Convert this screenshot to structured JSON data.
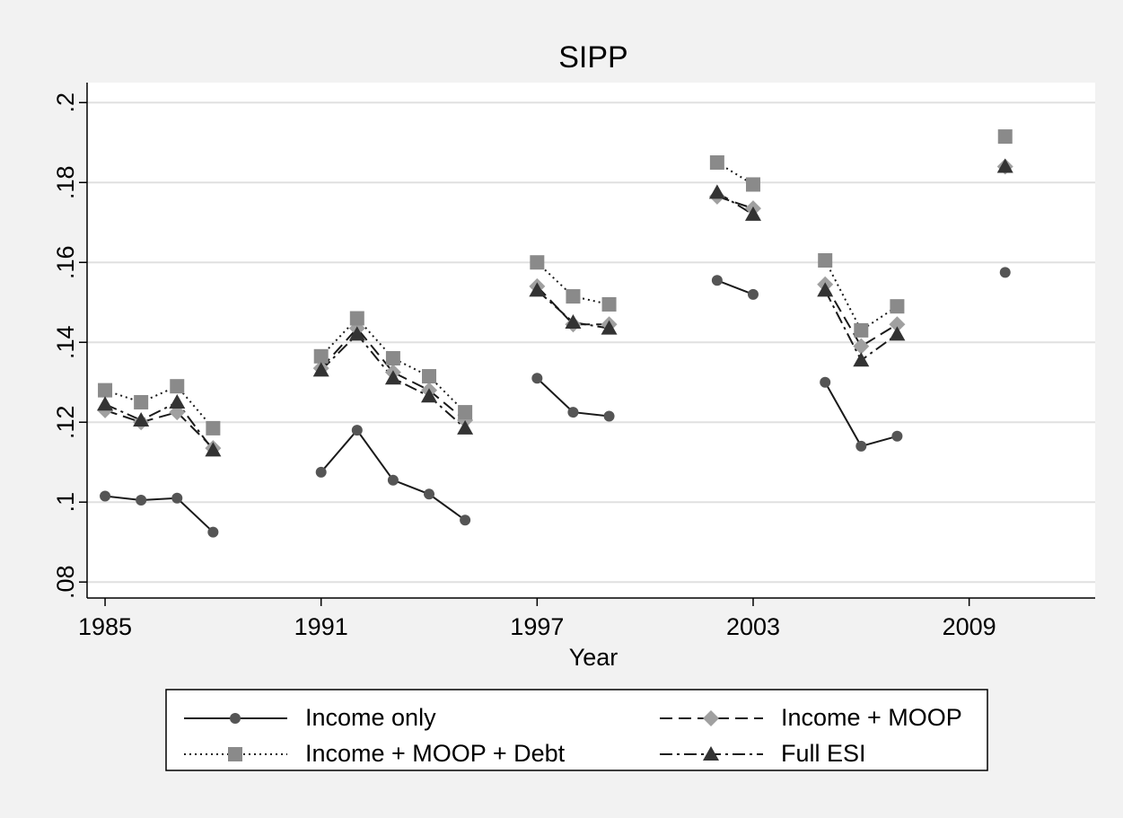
{
  "chart_data": {
    "type": "line",
    "title": "SIPP",
    "x_label": "Year",
    "x": [
      1985,
      1986,
      1987,
      1988,
      1989,
      1990,
      1991,
      1992,
      1993,
      1994,
      1995,
      1996,
      1997,
      1998,
      1999,
      2000,
      2001,
      2002,
      2003,
      2004,
      2005,
      2006,
      2007,
      2008,
      2009,
      2010
    ],
    "xlim": [
      1984.5,
      2012.5
    ],
    "xticks": [
      1985,
      1991,
      1997,
      2003,
      2009
    ],
    "ylim": [
      0.076,
      0.205
    ],
    "yticks": [
      {
        "value": 0.08,
        "label": ".08"
      },
      {
        "value": 0.1,
        "label": ".1"
      },
      {
        "value": 0.12,
        "label": ".12"
      },
      {
        "value": 0.14,
        "label": ".14"
      },
      {
        "value": 0.16,
        "label": ".16"
      },
      {
        "value": 0.18,
        "label": ".18"
      },
      {
        "value": 0.2,
        "label": ".2"
      }
    ],
    "grid": true,
    "series": [
      {
        "name": "Income only",
        "color": "#555555",
        "line_color": "#1a1a1a",
        "marker": "circle",
        "dash": "solid",
        "values": [
          0.1015,
          0.1005,
          0.101,
          0.0925,
          null,
          null,
          0.1075,
          0.118,
          0.1055,
          0.102,
          0.0955,
          null,
          0.131,
          0.1225,
          0.1215,
          null,
          null,
          0.1555,
          0.152,
          null,
          0.13,
          0.114,
          0.1165,
          null,
          null,
          0.1575
        ]
      },
      {
        "name": "Income + MOOP",
        "color": "#a0a0a0",
        "line_color": "#1a1a1a",
        "marker": "diamond",
        "dash": "dashed",
        "values": [
          0.123,
          0.12,
          0.1225,
          0.1135,
          null,
          null,
          0.1335,
          0.1435,
          0.1325,
          0.128,
          0.1205,
          null,
          0.154,
          0.1445,
          0.1445,
          null,
          null,
          0.1765,
          0.1735,
          null,
          0.1545,
          0.139,
          0.1445,
          null,
          null,
          0.184
        ]
      },
      {
        "name": "Income + MOOP + Debt",
        "color": "#8a8a8a",
        "line_color": "#1a1a1a",
        "marker": "square",
        "dash": "dotted",
        "values": [
          0.128,
          0.125,
          0.129,
          0.1185,
          null,
          null,
          0.1365,
          0.146,
          0.136,
          0.1315,
          0.1225,
          null,
          0.16,
          0.1515,
          0.1495,
          null,
          null,
          0.185,
          0.1795,
          null,
          0.1605,
          0.143,
          0.149,
          null,
          null,
          0.1915
        ]
      },
      {
        "name": "Full ESI",
        "color": "#333333",
        "line_color": "#1a1a1a",
        "marker": "triangle",
        "dash": "dashdot",
        "values": [
          0.1245,
          0.1205,
          0.125,
          0.113,
          null,
          null,
          0.133,
          0.142,
          0.131,
          0.1265,
          0.1185,
          null,
          0.153,
          0.145,
          0.1435,
          null,
          null,
          0.1775,
          0.172,
          null,
          0.153,
          0.1355,
          0.142,
          null,
          null,
          0.184
        ]
      }
    ]
  }
}
